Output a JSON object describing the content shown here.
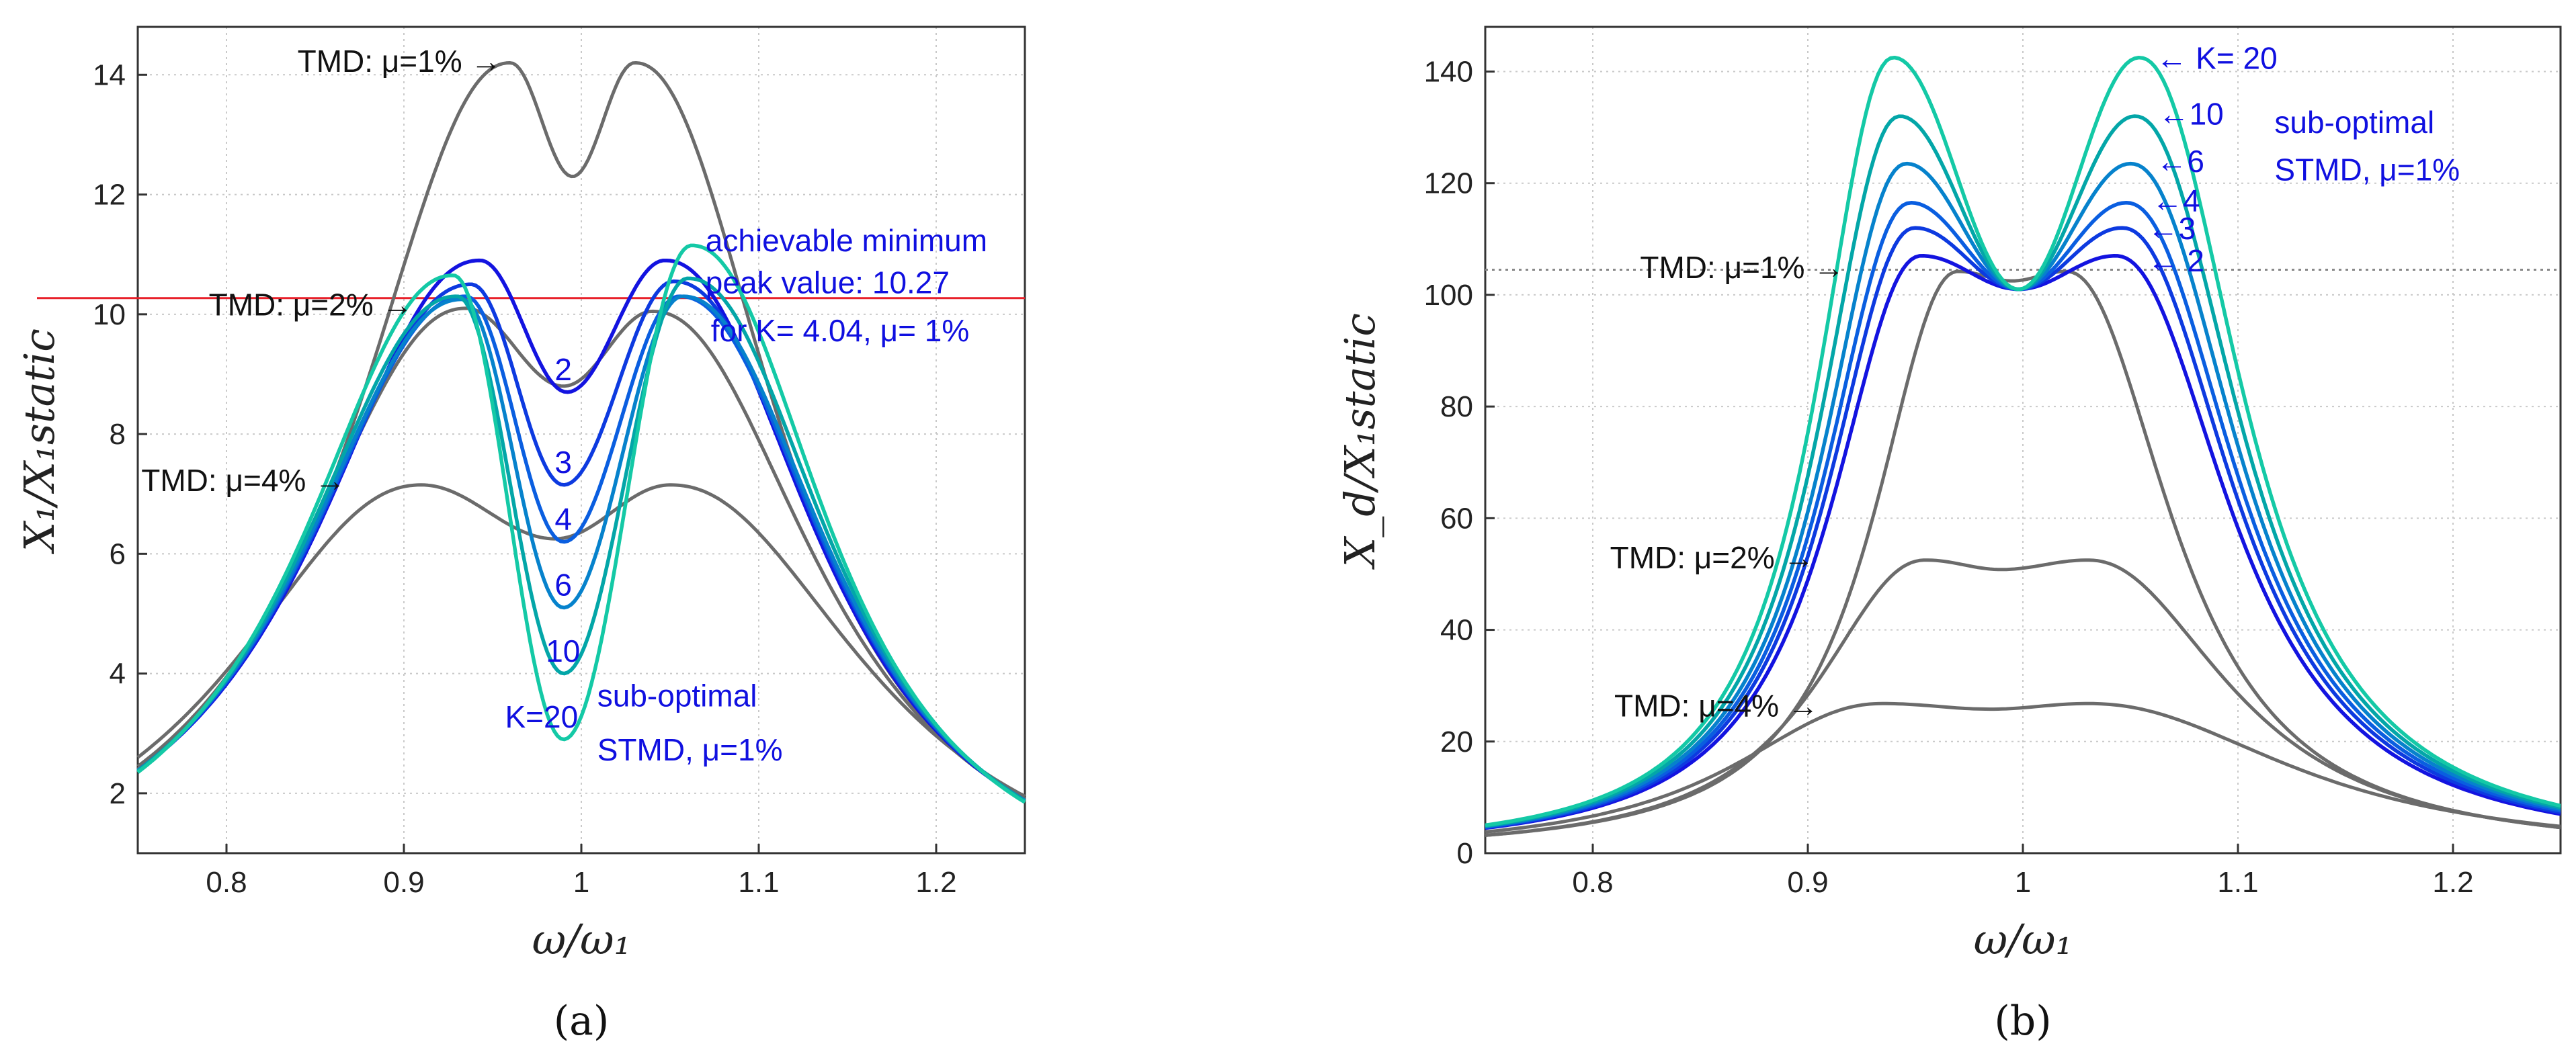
{
  "panel_labels": {
    "a": "(a)",
    "b": "(b)"
  },
  "colors": {
    "k2": "#1313e0",
    "k3": "#0d3ae0",
    "k4": "#0a5ee0",
    "k6": "#0682cc",
    "k10": "#03a6a8",
    "k20": "#14c9a6",
    "tmd": "#6b6b6b",
    "hline": "#e8202a",
    "annotation_blue": "#1010e0",
    "annotation_black": "#111111"
  },
  "chart_data": [
    {
      "type": "line",
      "panel": "a",
      "xlabel": "ω/ω₁",
      "ylabel": "X₁/X₁static",
      "xlim": [
        0.75,
        1.25
      ],
      "ylim": [
        1,
        14.8
      ],
      "xticks": [
        0.8,
        0.9,
        1,
        1.1,
        1.2
      ],
      "xtick_labels": [
        "0.8",
        "0.9",
        "1",
        "1.1",
        "1.2"
      ],
      "yticks": [
        2,
        4,
        6,
        8,
        10,
        12,
        14
      ],
      "ytick_labels": [
        "2",
        "4",
        "6",
        "8",
        "10",
        "12",
        "14"
      ],
      "grid": true,
      "hline": {
        "y": 10.27,
        "color": "#e8202a"
      },
      "series": [
        {
          "name": "TMD μ=1%",
          "kind": "tmd",
          "peaks": [
            [
              0.96,
              14.2
            ],
            [
              1.03,
              14.2
            ]
          ],
          "valley": [
            0.995,
            12.3
          ],
          "ends": [
            2.4,
            1.9
          ],
          "color": "#6b6b6b"
        },
        {
          "name": "TMD μ=2%",
          "kind": "tmd",
          "peaks": [
            [
              0.935,
              10.1
            ],
            [
              1.04,
              10.05
            ]
          ],
          "valley": [
            0.99,
            8.8
          ],
          "ends": [
            2.45,
            1.9
          ],
          "color": "#6b6b6b"
        },
        {
          "name": "TMD μ=4%",
          "kind": "tmd",
          "peaks": [
            [
              0.91,
              7.15
            ],
            [
              1.05,
              7.15
            ]
          ],
          "valley": [
            0.985,
            6.25
          ],
          "ends": [
            2.6,
            1.95
          ],
          "color": "#6b6b6b"
        },
        {
          "name": "K=2",
          "kind": "stmd",
          "peaks": [
            [
              0.943,
              10.9
            ],
            [
              1.047,
              10.9
            ]
          ],
          "valley": [
            0.992,
            8.7
          ],
          "ends": [
            2.38,
            1.88
          ],
          "color": "#1313e0"
        },
        {
          "name": "K=3",
          "kind": "stmd",
          "peaks": [
            [
              0.938,
              10.5
            ],
            [
              1.052,
              10.55
            ]
          ],
          "valley": [
            0.99,
            7.15
          ],
          "ends": [
            2.38,
            1.88
          ],
          "color": "#0d3ae0"
        },
        {
          "name": "K=4",
          "kind": "stmd",
          "peaks": [
            [
              0.935,
              10.3
            ],
            [
              1.055,
              10.3
            ]
          ],
          "valley": [
            0.99,
            6.2
          ],
          "ends": [
            2.38,
            1.88
          ],
          "color": "#0a5ee0"
        },
        {
          "name": "K=6",
          "kind": "stmd",
          "peaks": [
            [
              0.933,
              10.25
            ],
            [
              1.057,
              10.3
            ]
          ],
          "valley": [
            0.99,
            5.1
          ],
          "ends": [
            2.38,
            1.88
          ],
          "color": "#0682cc"
        },
        {
          "name": "K=10",
          "kind": "stmd",
          "peaks": [
            [
              0.93,
              10.3
            ],
            [
              1.06,
              10.6
            ]
          ],
          "valley": [
            0.99,
            4.0
          ],
          "ends": [
            2.37,
            1.87
          ],
          "color": "#03a6a8"
        },
        {
          "name": "K=20",
          "kind": "stmd",
          "peaks": [
            [
              0.928,
              10.65
            ],
            [
              1.062,
              11.15
            ]
          ],
          "valley": [
            0.99,
            2.9
          ],
          "ends": [
            2.35,
            1.85
          ],
          "color": "#14c9a6"
        }
      ],
      "annotations": [
        {
          "text": "TMD: μ=1% →",
          "x": 0.84,
          "y": 14.05,
          "color": "#111111"
        },
        {
          "text": "TMD: μ=2% →",
          "x": 0.79,
          "y": 9.98,
          "color": "#111111"
        },
        {
          "text": "TMD: μ=4% →",
          "x": 0.752,
          "y": 7.05,
          "color": "#111111"
        },
        {
          "text": "achievable minimum",
          "x": 1.07,
          "y": 11.05,
          "color": "#1010e0"
        },
        {
          "text": "peak value: 10.27",
          "x": 1.07,
          "y": 10.35,
          "color": "#1010e0"
        },
        {
          "text": "for K= 4.04, μ= 1%",
          "x": 1.073,
          "y": 9.55,
          "color": "#1010e0"
        },
        {
          "text": "2",
          "x": 0.985,
          "y": 8.9,
          "color": "#1010e0"
        },
        {
          "text": "3",
          "x": 0.985,
          "y": 7.35,
          "color": "#1010e0"
        },
        {
          "text": "4",
          "x": 0.985,
          "y": 6.4,
          "color": "#1010e0"
        },
        {
          "text": "6",
          "x": 0.985,
          "y": 5.3,
          "color": "#1010e0"
        },
        {
          "text": "10",
          "x": 0.98,
          "y": 4.2,
          "color": "#1010e0"
        },
        {
          "text": "K=20",
          "x": 0.957,
          "y": 3.1,
          "color": "#1010e0"
        },
        {
          "text": "sub-optimal",
          "x": 1.009,
          "y": 3.45,
          "color": "#1010e0"
        },
        {
          "text": "STMD, μ=1%",
          "x": 1.009,
          "y": 2.55,
          "color": "#1010e0"
        }
      ]
    },
    {
      "type": "line",
      "panel": "b",
      "xlabel": "ω/ω₁",
      "ylabel": "X_d/X₁static",
      "xlim": [
        0.75,
        1.25
      ],
      "ylim": [
        0,
        148
      ],
      "xticks": [
        0.8,
        0.9,
        1,
        1.1,
        1.2
      ],
      "xtick_labels": [
        "0.8",
        "0.9",
        "1",
        "1.1",
        "1.2"
      ],
      "yticks": [
        0,
        20,
        40,
        60,
        80,
        100,
        120,
        140
      ],
      "ytick_labels": [
        "0",
        "20",
        "40",
        "60",
        "80",
        "100",
        "120",
        "140"
      ],
      "grid": true,
      "hline": {
        "y": 104.5,
        "color": "#888888"
      },
      "series": [
        {
          "name": "TMD μ=1%",
          "kind": "tmd",
          "peaks": [
            [
              0.97,
              104.2
            ],
            [
              1.02,
              104.2
            ]
          ],
          "valley": [
            0.995,
            102.5
          ],
          "ends": [
            3.2,
            4.6
          ],
          "color": "#6b6b6b"
        },
        {
          "name": "TMD μ=2%",
          "kind": "tmd",
          "peaks": [
            [
              0.955,
              52.5
            ],
            [
              1.03,
              52.5
            ]
          ],
          "valley": [
            0.99,
            50.8
          ],
          "ends": [
            3.2,
            4.6
          ],
          "color": "#6b6b6b"
        },
        {
          "name": "TMD μ=4%",
          "kind": "tmd",
          "peaks": [
            [
              0.935,
              26.8
            ],
            [
              1.03,
              26.8
            ]
          ],
          "valley": [
            0.985,
            25.8
          ],
          "ends": [
            3.8,
            4.8
          ],
          "color": "#6b6b6b"
        },
        {
          "name": "K=2",
          "kind": "stmd",
          "peaks": [
            [
              0.953,
              107
            ],
            [
              1.043,
              107
            ]
          ],
          "valley": [
            0.998,
            101
          ],
          "ends": [
            4.5,
            7.0
          ],
          "color": "#1313e0"
        },
        {
          "name": "K=3",
          "kind": "stmd",
          "peaks": [
            [
              0.95,
              112
            ],
            [
              1.046,
              112
            ]
          ],
          "valley": [
            0.998,
            101
          ],
          "ends": [
            4.6,
            7.3
          ],
          "color": "#0d3ae0"
        },
        {
          "name": "K=4",
          "kind": "stmd",
          "peaks": [
            [
              0.948,
              116.5
            ],
            [
              1.048,
              116.5
            ]
          ],
          "valley": [
            0.998,
            101
          ],
          "ends": [
            4.7,
            7.6
          ],
          "color": "#0a5ee0"
        },
        {
          "name": "K=6",
          "kind": "stmd",
          "peaks": [
            [
              0.946,
              123.5
            ],
            [
              1.05,
              123.5
            ]
          ],
          "valley": [
            0.998,
            101
          ],
          "ends": [
            4.8,
            7.9
          ],
          "color": "#0682cc"
        },
        {
          "name": "K=10",
          "kind": "stmd",
          "peaks": [
            [
              0.943,
              132
            ],
            [
              1.052,
              132
            ]
          ],
          "valley": [
            0.998,
            101
          ],
          "ends": [
            4.9,
            8.2
          ],
          "color": "#03a6a8"
        },
        {
          "name": "K=20",
          "kind": "stmd",
          "peaks": [
            [
              0.94,
              142.5
            ],
            [
              1.054,
              142.5
            ]
          ],
          "valley": [
            0.998,
            101
          ],
          "ends": [
            5.0,
            8.5
          ],
          "color": "#14c9a6"
        }
      ],
      "annotations": [
        {
          "text": "TMD: μ=1% →",
          "x": 0.822,
          "y": 103,
          "color": "#111111"
        },
        {
          "text": "TMD: μ=2% →",
          "x": 0.808,
          "y": 51,
          "color": "#111111"
        },
        {
          "text": "TMD: μ=4% →",
          "x": 0.81,
          "y": 24.5,
          "color": "#111111"
        },
        {
          "text": "← K= 20",
          "x": 1.062,
          "y": 140.5,
          "color": "#1010e0"
        },
        {
          "text": "←10",
          "x": 1.063,
          "y": 130.5,
          "color": "#1010e0"
        },
        {
          "text": "←6",
          "x": 1.062,
          "y": 122,
          "color": "#1010e0"
        },
        {
          "text": "←4",
          "x": 1.06,
          "y": 115,
          "color": "#1010e0"
        },
        {
          "text": "←3",
          "x": 1.058,
          "y": 110,
          "color": "#1010e0"
        },
        {
          "text": "← 2",
          "x": 1.058,
          "y": 104.2,
          "color": "#1010e0"
        },
        {
          "text": "sub-optimal",
          "x": 1.117,
          "y": 129,
          "color": "#1010e0"
        },
        {
          "text": "STMD, μ=1%",
          "x": 1.117,
          "y": 120.5,
          "color": "#1010e0"
        }
      ]
    }
  ]
}
